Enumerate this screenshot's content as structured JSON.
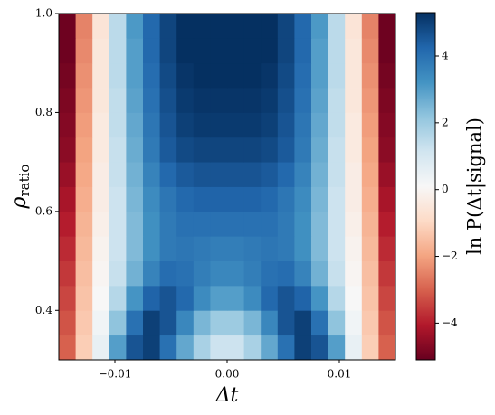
{
  "chart_data": {
    "type": "heatmap",
    "xlabel": "Δt",
    "ylabel": {
      "symbol": "ρ",
      "subscript": "ratio"
    },
    "colorbar_label": "ln P(Δt|signal)",
    "x": [
      -0.01425,
      -0.01275,
      -0.01125,
      -0.00975,
      -0.00825,
      -0.00675,
      -0.00525,
      -0.00375,
      -0.00225,
      -0.00075,
      0.00075,
      0.00225,
      0.00375,
      0.00525,
      0.00675,
      0.00825,
      0.00975,
      0.01125,
      0.01275,
      0.01425
    ],
    "y": [
      0.325,
      0.375,
      0.425,
      0.475,
      0.525,
      0.575,
      0.625,
      0.675,
      0.725,
      0.775,
      0.825,
      0.875,
      0.925,
      0.975
    ],
    "z": [
      [
        -3.0,
        -1.2,
        0.5,
        3.0,
        4.6,
        5.0,
        4.0,
        2.8,
        1.8,
        1.2,
        1.2,
        1.8,
        2.8,
        4.0,
        5.0,
        4.6,
        3.0,
        0.5,
        -1.2,
        -3.0
      ],
      [
        -3.2,
        -1.3,
        0.3,
        2.2,
        4.0,
        5.0,
        4.6,
        3.5,
        2.5,
        2.0,
        2.0,
        2.5,
        3.5,
        4.6,
        5.0,
        4.0,
        2.2,
        0.3,
        -1.3,
        -3.2
      ],
      [
        -3.4,
        -1.4,
        0.1,
        1.6,
        3.2,
        4.3,
        4.6,
        4.2,
        3.4,
        3.0,
        3.0,
        3.4,
        4.2,
        4.6,
        4.3,
        3.2,
        1.6,
        0.1,
        -1.4,
        -3.4
      ],
      [
        -3.6,
        -1.5,
        0.0,
        1.3,
        2.6,
        3.6,
        4.1,
        4.0,
        3.7,
        3.5,
        3.5,
        3.7,
        4.0,
        4.1,
        3.6,
        2.6,
        1.3,
        0.0,
        -1.5,
        -3.6
      ],
      [
        -3.8,
        -1.6,
        -0.1,
        1.2,
        2.4,
        3.3,
        3.8,
        3.9,
        3.8,
        3.7,
        3.7,
        3.8,
        3.9,
        3.8,
        3.3,
        2.4,
        1.2,
        -0.1,
        -1.6,
        -3.8
      ],
      [
        -4.0,
        -1.7,
        -0.2,
        1.2,
        2.4,
        3.3,
        3.8,
        4.0,
        4.0,
        4.0,
        4.0,
        4.0,
        4.0,
        3.8,
        3.3,
        2.4,
        1.2,
        -0.2,
        -1.7,
        -4.0
      ],
      [
        -4.2,
        -1.8,
        -0.3,
        1.2,
        2.5,
        3.4,
        3.9,
        4.2,
        4.3,
        4.3,
        4.3,
        4.3,
        4.2,
        3.9,
        3.4,
        2.5,
        1.2,
        -0.3,
        -1.8,
        -4.2
      ],
      [
        -4.4,
        -1.9,
        -0.3,
        1.3,
        2.6,
        3.6,
        4.2,
        4.5,
        4.6,
        4.6,
        4.6,
        4.6,
        4.5,
        4.2,
        3.6,
        2.6,
        1.3,
        -0.3,
        -1.9,
        -4.4
      ],
      [
        -4.6,
        -2.0,
        -0.4,
        1.3,
        2.7,
        3.8,
        4.5,
        4.8,
        4.9,
        4.9,
        4.9,
        4.9,
        4.8,
        4.5,
        3.8,
        2.7,
        1.3,
        -0.4,
        -2.0,
        -4.6
      ],
      [
        -4.7,
        -2.1,
        -0.4,
        1.4,
        2.8,
        3.9,
        4.6,
        5.0,
        5.1,
        5.1,
        5.1,
        5.1,
        5.0,
        4.6,
        3.9,
        2.8,
        1.4,
        -0.4,
        -2.1,
        -4.7
      ],
      [
        -4.8,
        -2.2,
        -0.5,
        1.4,
        2.9,
        4.0,
        4.7,
        5.1,
        5.2,
        5.2,
        5.2,
        5.2,
        5.1,
        4.7,
        4.0,
        2.9,
        1.4,
        -0.5,
        -2.2,
        -4.8
      ],
      [
        -4.9,
        -2.3,
        -0.5,
        1.5,
        3.0,
        4.1,
        4.8,
        5.2,
        5.3,
        5.3,
        5.3,
        5.3,
        5.2,
        4.8,
        4.1,
        3.0,
        1.5,
        -0.5,
        -2.3,
        -4.9
      ],
      [
        -5.0,
        -2.4,
        -0.5,
        1.5,
        3.0,
        4.2,
        4.9,
        5.3,
        5.3,
        5.3,
        5.3,
        5.3,
        5.3,
        4.9,
        4.2,
        3.0,
        1.5,
        -0.5,
        -2.4,
        -5.0
      ],
      [
        -5.0,
        -2.5,
        -0.6,
        1.5,
        3.1,
        4.2,
        4.9,
        5.3,
        5.4,
        5.4,
        5.4,
        5.4,
        5.3,
        4.9,
        4.2,
        3.1,
        1.5,
        -0.6,
        -2.5,
        -5.0
      ]
    ],
    "colormap": "RdBu",
    "clim": [
      -5.1,
      5.3
    ],
    "xlim": [
      -0.015,
      0.015
    ],
    "ylim": [
      0.3,
      1.0
    ],
    "xticks": [
      {
        "value": -0.01,
        "label": "−0.01"
      },
      {
        "value": 0,
        "label": "0.00"
      },
      {
        "value": 0.01,
        "label": "0.01"
      }
    ],
    "yticks": [
      0.4,
      0.6,
      0.8,
      {
        "value": 1.0,
        "label": "1.0"
      }
    ],
    "cticks": [
      {
        "value": -4,
        "label": "−4"
      },
      {
        "value": -2,
        "label": "−2"
      },
      0,
      2,
      4
    ]
  }
}
